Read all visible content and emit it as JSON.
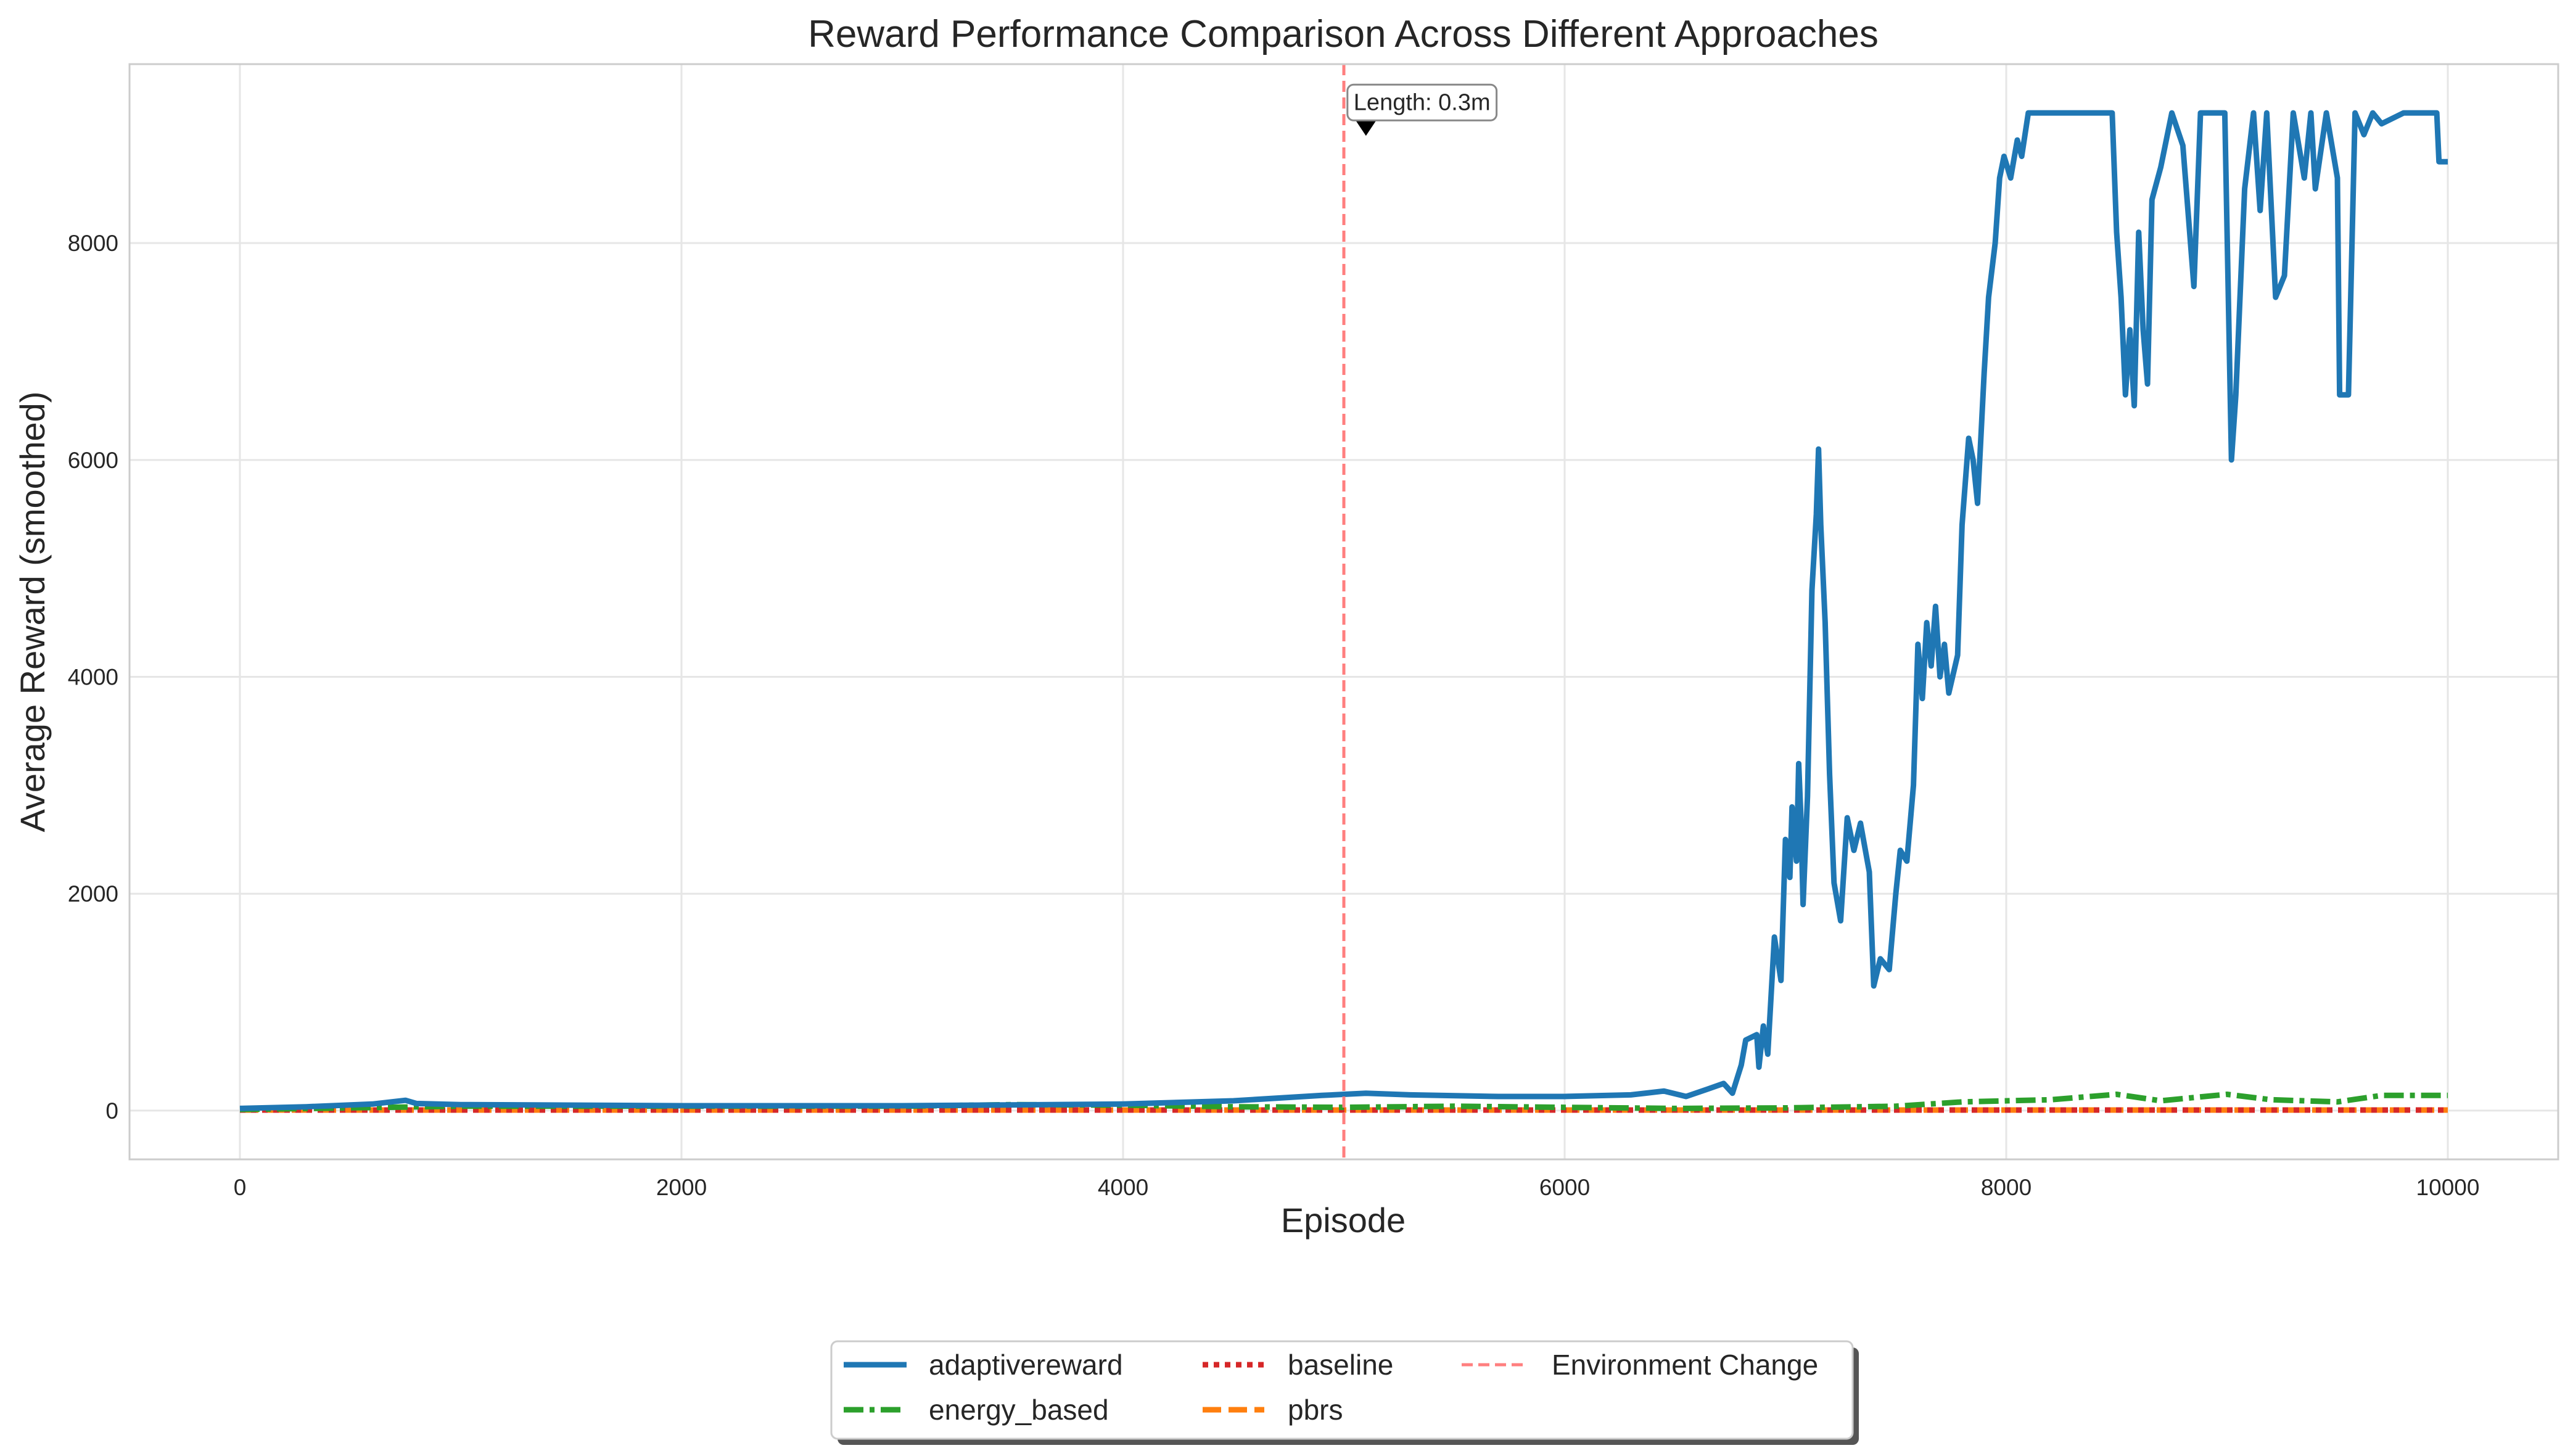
{
  "chart_data": {
    "type": "line",
    "title": "Reward Performance Comparison Across Different Approaches",
    "xlabel": "Episode",
    "ylabel": "Average Reward (smoothed)",
    "xlim": [
      -500,
      10500
    ],
    "ylim": [
      -450,
      9650
    ],
    "x_ticks": [
      0,
      2000,
      4000,
      6000,
      8000,
      10000
    ],
    "y_ticks": [
      0,
      2000,
      4000,
      6000,
      8000
    ],
    "x_tick_labels": [
      "0",
      "2000",
      "4000",
      "6000",
      "8000",
      "10000"
    ],
    "y_tick_labels": [
      "0",
      "2000",
      "4000",
      "6000",
      "8000"
    ],
    "grid": true,
    "legend_position": "bottom-center",
    "series": [
      {
        "name": "adaptivereward",
        "color": "#1f77b4",
        "style": "solid",
        "points": [
          [
            0,
            20
          ],
          [
            300,
            35
          ],
          [
            600,
            60
          ],
          [
            750,
            95
          ],
          [
            800,
            65
          ],
          [
            1000,
            55
          ],
          [
            2000,
            45
          ],
          [
            3000,
            45
          ],
          [
            4000,
            60
          ],
          [
            4500,
            90
          ],
          [
            4900,
            140
          ],
          [
            5100,
            160
          ],
          [
            5300,
            145
          ],
          [
            5700,
            130
          ],
          [
            6000,
            130
          ],
          [
            6300,
            145
          ],
          [
            6450,
            180
          ],
          [
            6550,
            130
          ],
          [
            6650,
            200
          ],
          [
            6720,
            250
          ],
          [
            6760,
            160
          ],
          [
            6800,
            420
          ],
          [
            6820,
            650
          ],
          [
            6870,
            700
          ],
          [
            6880,
            400
          ],
          [
            6900,
            780
          ],
          [
            6920,
            520
          ],
          [
            6950,
            1600
          ],
          [
            6980,
            1200
          ],
          [
            7000,
            2500
          ],
          [
            7020,
            2150
          ],
          [
            7030,
            2800
          ],
          [
            7050,
            2300
          ],
          [
            7060,
            3200
          ],
          [
            7070,
            2700
          ],
          [
            7080,
            1900
          ],
          [
            7100,
            2900
          ],
          [
            7120,
            4800
          ],
          [
            7140,
            5500
          ],
          [
            7150,
            6100
          ],
          [
            7160,
            5400
          ],
          [
            7180,
            4500
          ],
          [
            7200,
            3100
          ],
          [
            7220,
            2100
          ],
          [
            7250,
            1750
          ],
          [
            7280,
            2700
          ],
          [
            7310,
            2400
          ],
          [
            7340,
            2650
          ],
          [
            7380,
            2200
          ],
          [
            7400,
            1150
          ],
          [
            7430,
            1400
          ],
          [
            7470,
            1300
          ],
          [
            7500,
            2000
          ],
          [
            7520,
            2400
          ],
          [
            7550,
            2300
          ],
          [
            7580,
            3000
          ],
          [
            7600,
            4300
          ],
          [
            7620,
            3800
          ],
          [
            7640,
            4500
          ],
          [
            7660,
            4100
          ],
          [
            7680,
            4650
          ],
          [
            7700,
            4000
          ],
          [
            7720,
            4300
          ],
          [
            7740,
            3850
          ],
          [
            7780,
            4200
          ],
          [
            7800,
            5400
          ],
          [
            7830,
            6200
          ],
          [
            7850,
            6000
          ],
          [
            7870,
            5600
          ],
          [
            7900,
            6800
          ],
          [
            7920,
            7500
          ],
          [
            7950,
            8000
          ],
          [
            7970,
            8600
          ],
          [
            7990,
            8800
          ],
          [
            8020,
            8600
          ],
          [
            8050,
            8950
          ],
          [
            8070,
            8800
          ],
          [
            8100,
            9200
          ],
          [
            8300,
            9200
          ],
          [
            8480,
            9200
          ],
          [
            8500,
            8100
          ],
          [
            8520,
            7500
          ],
          [
            8540,
            6600
          ],
          [
            8560,
            7200
          ],
          [
            8580,
            6500
          ],
          [
            8600,
            8100
          ],
          [
            8620,
            7200
          ],
          [
            8640,
            6700
          ],
          [
            8660,
            8400
          ],
          [
            8700,
            8700
          ],
          [
            8750,
            9200
          ],
          [
            8800,
            8900
          ],
          [
            8850,
            7600
          ],
          [
            8880,
            9200
          ],
          [
            8990,
            9200
          ],
          [
            9020,
            6000
          ],
          [
            9040,
            6600
          ],
          [
            9080,
            8500
          ],
          [
            9120,
            9200
          ],
          [
            9150,
            8300
          ],
          [
            9180,
            9200
          ],
          [
            9220,
            7500
          ],
          [
            9260,
            7700
          ],
          [
            9300,
            9200
          ],
          [
            9350,
            8600
          ],
          [
            9380,
            9200
          ],
          [
            9400,
            8500
          ],
          [
            9450,
            9200
          ],
          [
            9500,
            8600
          ],
          [
            9510,
            6600
          ],
          [
            9550,
            6600
          ],
          [
            9580,
            9200
          ],
          [
            9620,
            9000
          ],
          [
            9660,
            9200
          ],
          [
            9700,
            9100
          ],
          [
            9800,
            9200
          ],
          [
            9950,
            9200
          ],
          [
            9960,
            8750
          ],
          [
            10000,
            8750
          ]
        ]
      },
      {
        "name": "energy_based",
        "color": "#2ca02c",
        "style": "dashdot",
        "points": [
          [
            0,
            10
          ],
          [
            1000,
            40
          ],
          [
            2000,
            40
          ],
          [
            3000,
            40
          ],
          [
            3500,
            55
          ],
          [
            4000,
            50
          ],
          [
            4500,
            35
          ],
          [
            5000,
            30
          ],
          [
            5500,
            40
          ],
          [
            6000,
            30
          ],
          [
            6500,
            20
          ],
          [
            7000,
            25
          ],
          [
            7500,
            40
          ],
          [
            7800,
            80
          ],
          [
            8200,
            100
          ],
          [
            8500,
            150
          ],
          [
            8700,
            90
          ],
          [
            9000,
            150
          ],
          [
            9200,
            100
          ],
          [
            9500,
            80
          ],
          [
            9700,
            140
          ],
          [
            10000,
            140
          ]
        ]
      },
      {
        "name": "baseline",
        "color": "#d62728",
        "style": "dotted",
        "points": [
          [
            0,
            5
          ],
          [
            10000,
            5
          ]
        ]
      },
      {
        "name": "pbrs",
        "color": "#ff7f0e",
        "style": "dashed",
        "points": [
          [
            0,
            5
          ],
          [
            10000,
            5
          ]
        ]
      }
    ],
    "reference_line": {
      "name": "Environment Change",
      "x": 5000,
      "color": "#ff7f7f",
      "style": "dashed"
    },
    "annotation": {
      "text": "Length: 0.3m",
      "x": 5100,
      "y": 9000
    }
  }
}
